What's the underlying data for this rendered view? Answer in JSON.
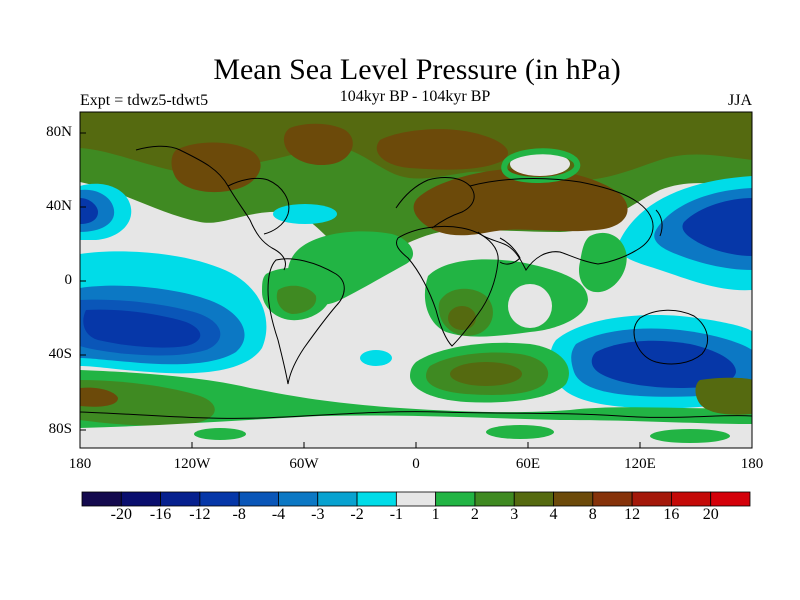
{
  "title": "Mean Sea Level Pressure (in hPa)",
  "subtitle": "104kyr BP - 104kyr BP",
  "left_label": "Expt = tdwz5-tdwt5",
  "right_label": "JJA",
  "lat_labels": [
    "80N",
    "40N",
    "0",
    "40S",
    "80S"
  ],
  "lon_labels": [
    "180",
    "120W",
    "60W",
    "0",
    "60E",
    "120E",
    "180"
  ],
  "colorbar": {
    "labels": [
      "-20",
      "-16",
      "-12",
      "-8",
      "-4",
      "-3",
      "-2",
      "-1",
      "1",
      "2",
      "3",
      "4",
      "8",
      "12",
      "16",
      "20"
    ],
    "colors": [
      "#140a4e",
      "#0a0e6e",
      "#06208e",
      "#0637a8",
      "#0a56b8",
      "#0c78c4",
      "#08a2d0",
      "#00dce8",
      "#e6e6e6",
      "#22b444",
      "#3f8a22",
      "#556a10",
      "#6c4a0a",
      "#86320a",
      "#a4180a",
      "#c40a08",
      "#d4000a"
    ]
  },
  "colors": {
    "neutral": "#e6e6e6",
    "light_green": "#22b444",
    "mid_green": "#3f8a22",
    "olive": "#556a10",
    "brown": "#6c4a0a",
    "cyan": "#00dce8",
    "light_blue": "#08a2d0",
    "blue": "#0c78c4",
    "dark_blue": "#06208e"
  }
}
